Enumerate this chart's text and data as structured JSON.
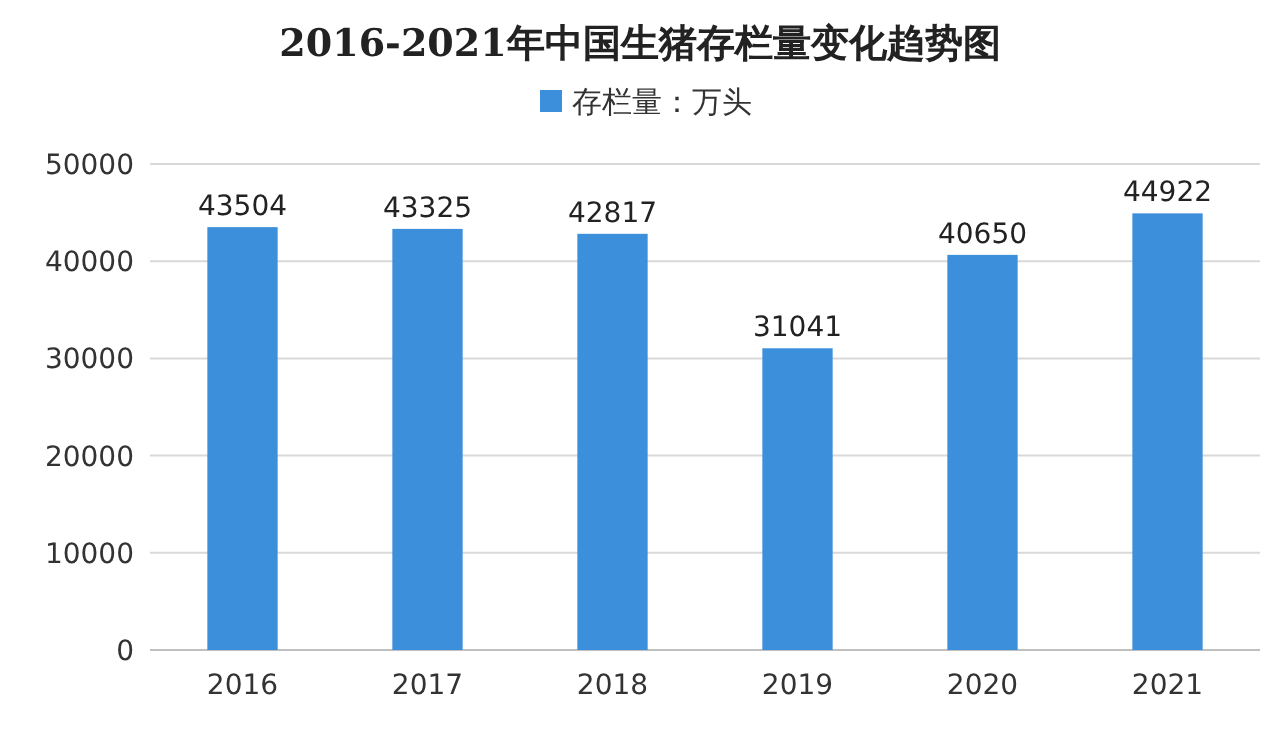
{
  "chart_data": {
    "type": "bar",
    "title": "2016-2021年中国生猪存栏量变化趋势图",
    "categories": [
      "2016",
      "2017",
      "2018",
      "2019",
      "2020",
      "2021"
    ],
    "series": [
      {
        "name": "存栏量：万头",
        "color": "#3b8fdb",
        "values": [
          43504,
          43325,
          42817,
          31041,
          40650,
          44922
        ]
      }
    ],
    "ylim": [
      0,
      50000
    ],
    "yticks": [
      0,
      10000,
      20000,
      30000,
      40000,
      50000
    ],
    "grid": "y",
    "legend": "top",
    "data_labels": true
  }
}
